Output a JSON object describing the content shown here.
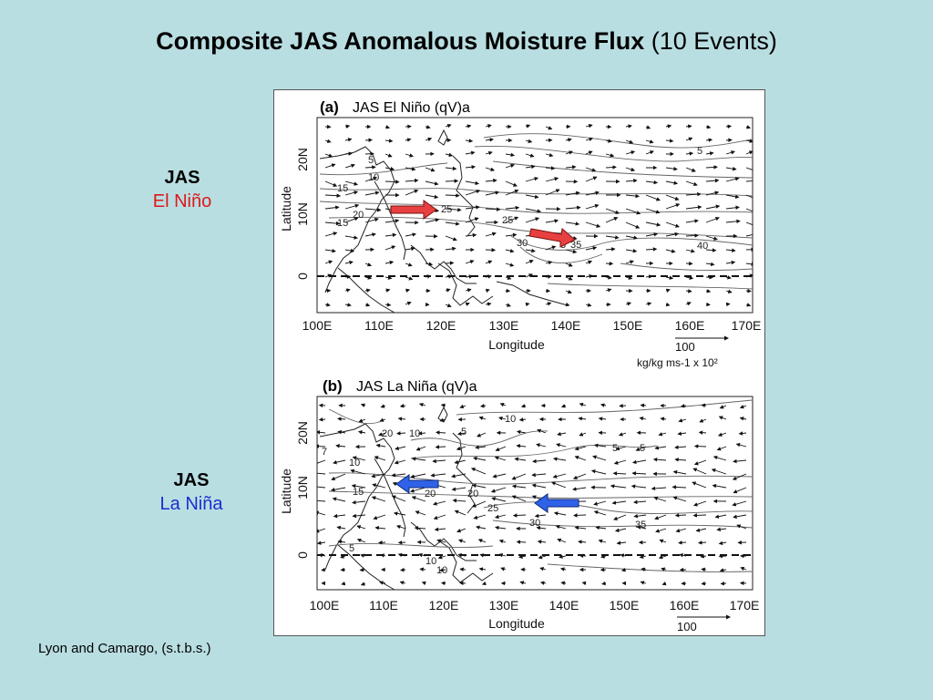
{
  "title": {
    "bold": "Composite JAS Anomalous Moisture Flux",
    "normal": "(10 Events)"
  },
  "side_labels": [
    {
      "line1": "JAS",
      "line2": "El Niño",
      "color": "#e0181a"
    },
    {
      "line1": "JAS",
      "line2": "La Niña",
      "color": "#1a2fd0"
    }
  ],
  "credit": "Lyon and Camargo, (s.t.b.s.)",
  "colors": {
    "background": "#b9dee2",
    "el_nino_arrow": "#e84040",
    "la_nina_arrow": "#2f62e8"
  },
  "panels": [
    {
      "tag": "(a)",
      "title": "JAS El Niño (qV)a",
      "y_axis_label": "Latitude",
      "x_axis_label": "Longitude",
      "x_ticks": [
        "100E",
        "110E",
        "120E",
        "130E",
        "140E",
        "150E",
        "160E",
        "170E"
      ],
      "y_ticks": [
        "20N",
        "10N",
        "0"
      ],
      "contour_labels": [
        "5",
        "10",
        "15",
        "20",
        "15",
        "25",
        "25",
        "30",
        "35",
        "40",
        "5",
        "3"
      ],
      "scale_vector": "100",
      "units_note": "kg/kg ms-1 x 10²",
      "highlight_arrows": "red, eastward"
    },
    {
      "tag": "(b)",
      "title": "JAS La Niña (qV)a",
      "y_axis_label": "Latitude",
      "x_axis_label": "Longitude",
      "x_ticks": [
        "100E",
        "110E",
        "120E",
        "130E",
        "140E",
        "150E",
        "160E",
        "170E"
      ],
      "y_ticks": [
        "20N",
        "10N",
        "0"
      ],
      "contour_labels": [
        "20",
        "10",
        "5",
        "10",
        "5",
        "5",
        "7",
        "10",
        "15",
        "20",
        "20",
        "25",
        "30",
        "35",
        "5",
        "10",
        "10"
      ],
      "scale_vector": "100",
      "highlight_arrows": "blue, westward"
    }
  ]
}
